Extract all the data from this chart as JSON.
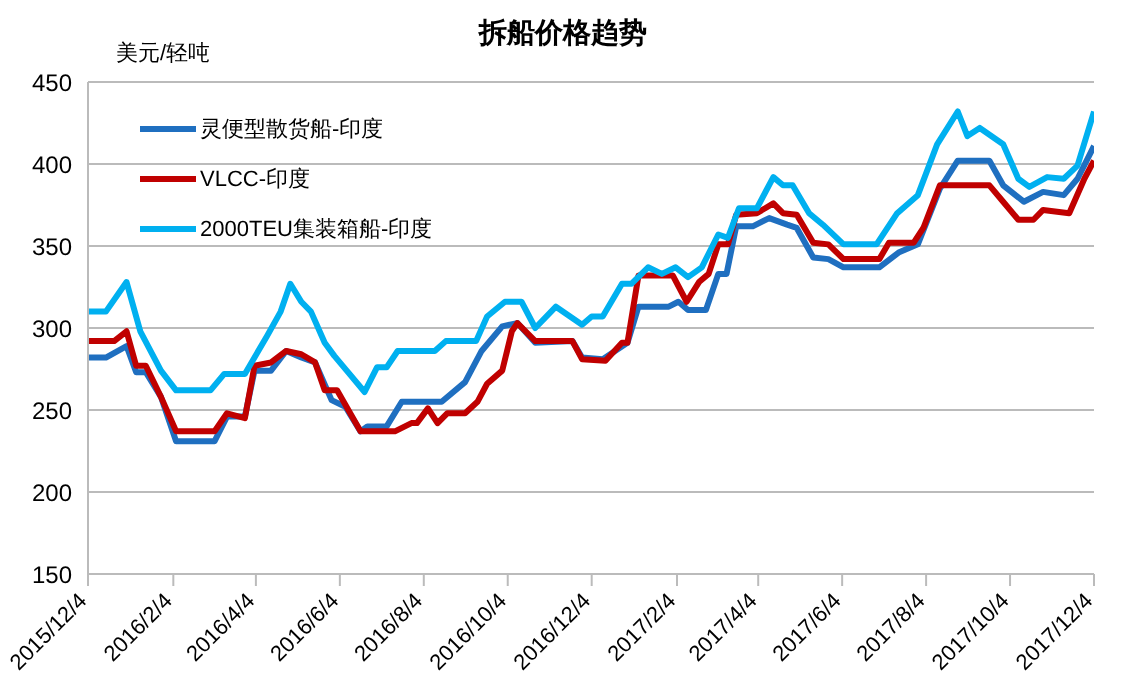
{
  "chart_data": {
    "type": "line",
    "title": "拆船价格趋势",
    "ylabel": "美元/轻吨",
    "ylim": [
      150,
      450
    ],
    "yticks": [
      150,
      200,
      250,
      300,
      350,
      400,
      450
    ],
    "xlim": [
      "2015-12-04",
      "2017-12-04"
    ],
    "xticks": [
      {
        "value": "2015-12-04",
        "label": "2015/12/4"
      },
      {
        "value": "2016-02-04",
        "label": "2016/2/4"
      },
      {
        "value": "2016-04-04",
        "label": "2016/4/4"
      },
      {
        "value": "2016-06-04",
        "label": "2016/6/4"
      },
      {
        "value": "2016-08-04",
        "label": "2016/8/4"
      },
      {
        "value": "2016-10-04",
        "label": "2016/10/4"
      },
      {
        "value": "2016-12-04",
        "label": "2016/12/4"
      },
      {
        "value": "2017-02-04",
        "label": "2017/2/4"
      },
      {
        "value": "2017-04-04",
        "label": "2017/4/4"
      },
      {
        "value": "2017-06-04",
        "label": "2017/6/4"
      },
      {
        "value": "2017-08-04",
        "label": "2017/8/4"
      },
      {
        "value": "2017-10-04",
        "label": "2017/10/4"
      },
      {
        "value": "2017-12-04",
        "label": "2017/12/4"
      }
    ],
    "grid": "y",
    "legend": "top left",
    "marker": "none",
    "line_style": "solid",
    "series": [
      {
        "name": "灵便型散货船-印度",
        "color": "#1f6fc0",
        "x": [
          "2015-12-04",
          "2015-12-17",
          "2016-01-01",
          "2016-01-08",
          "2016-01-15",
          "2016-01-26",
          "2016-02-06",
          "2016-03-05",
          "2016-03-14",
          "2016-03-27",
          "2016-04-03",
          "2016-04-15",
          "2016-04-26",
          "2016-05-07",
          "2016-05-17",
          "2016-05-29",
          "2016-06-08",
          "2016-06-19",
          "2016-06-24",
          "2016-07-08",
          "2016-07-19",
          "2016-08-17",
          "2016-09-03",
          "2016-09-15",
          "2016-09-30",
          "2016-10-11",
          "2016-10-24",
          "2016-11-20",
          "2016-11-27",
          "2016-12-12",
          "2016-12-30",
          "2017-01-07",
          "2017-01-29",
          "2017-02-05",
          "2017-02-12",
          "2017-02-25",
          "2017-03-06",
          "2017-03-12",
          "2017-03-19",
          "2017-03-31",
          "2017-04-12",
          "2017-04-25",
          "2017-05-02",
          "2017-05-14",
          "2017-05-25",
          "2017-06-05",
          "2017-07-01",
          "2017-07-15",
          "2017-07-29",
          "2017-08-14",
          "2017-08-27",
          "2017-09-19",
          "2017-09-29",
          "2017-10-14",
          "2017-10-28",
          "2017-11-12",
          "2017-11-22",
          "2017-12-04"
        ],
        "values": [
          282,
          282,
          289,
          273,
          273,
          258,
          231,
          231,
          246,
          246,
          274,
          274,
          286,
          282,
          279,
          256,
          252,
          237,
          240,
          240,
          255,
          255,
          267,
          286,
          301,
          303,
          291,
          292,
          282,
          281,
          291,
          313,
          313,
          316,
          311,
          311,
          333,
          333,
          362,
          362,
          367,
          363,
          361,
          343,
          342,
          337,
          337,
          346,
          351,
          385,
          402,
          402,
          387,
          377,
          383,
          381,
          391,
          411
        ]
      },
      {
        "name": "VLCC-印度",
        "color": "#c00000",
        "x": [
          "2015-12-04",
          "2015-12-23",
          "2016-01-01",
          "2016-01-08",
          "2016-01-15",
          "2016-01-26",
          "2016-02-06",
          "2016-03-05",
          "2016-03-14",
          "2016-03-27",
          "2016-04-03",
          "2016-04-15",
          "2016-04-26",
          "2016-05-07",
          "2016-05-17",
          "2016-05-24",
          "2016-06-02",
          "2016-06-19",
          "2016-07-14",
          "2016-07-26",
          "2016-07-30",
          "2016-08-07",
          "2016-08-14",
          "2016-08-21",
          "2016-09-03",
          "2016-09-12",
          "2016-09-19",
          "2016-09-30",
          "2016-10-07",
          "2016-10-11",
          "2016-10-24",
          "2016-11-20",
          "2016-11-27",
          "2016-12-14",
          "2016-12-26",
          "2016-12-30",
          "2017-01-07",
          "2017-02-01",
          "2017-02-11",
          "2017-02-20",
          "2017-02-27",
          "2017-03-06",
          "2017-03-13",
          "2017-03-19",
          "2017-04-03",
          "2017-04-15",
          "2017-04-22",
          "2017-05-02",
          "2017-05-14",
          "2017-05-25",
          "2017-06-05",
          "2017-07-01",
          "2017-07-08",
          "2017-07-26",
          "2017-08-02",
          "2017-08-14",
          "2017-08-21",
          "2017-09-19",
          "2017-09-29",
          "2017-10-10",
          "2017-10-21",
          "2017-10-28",
          "2017-11-16",
          "2017-11-27",
          "2017-12-04"
        ],
        "values": [
          292,
          292,
          298,
          277,
          277,
          258,
          237,
          237,
          248,
          245,
          277,
          279,
          286,
          284,
          279,
          262,
          262,
          237,
          237,
          242,
          242,
          251,
          242,
          248,
          248,
          255,
          266,
          274,
          298,
          303,
          292,
          292,
          281,
          280,
          291,
          291,
          332,
          332,
          316,
          328,
          333,
          351,
          351,
          369,
          370,
          376,
          370,
          369,
          352,
          351,
          342,
          342,
          352,
          352,
          361,
          387,
          387,
          387,
          377,
          366,
          366,
          372,
          370,
          391,
          402
        ]
      },
      {
        "name": "2000TEU集装箱船-印度",
        "color": "#00b0f0",
        "x": [
          "2015-12-04",
          "2015-12-17",
          "2016-01-01",
          "2016-01-11",
          "2016-01-26",
          "2016-02-06",
          "2016-03-02",
          "2016-03-12",
          "2016-03-27",
          "2016-04-12",
          "2016-04-22",
          "2016-04-29",
          "2016-05-07",
          "2016-05-14",
          "2016-05-24",
          "2016-05-31",
          "2016-06-09",
          "2016-06-22",
          "2016-07-01",
          "2016-07-08",
          "2016-07-16",
          "2016-08-12",
          "2016-08-20",
          "2016-09-11",
          "2016-09-19",
          "2016-10-02",
          "2016-10-14",
          "2016-10-24",
          "2016-11-08",
          "2016-11-27",
          "2016-12-04",
          "2016-12-12",
          "2016-12-26",
          "2017-01-02",
          "2017-01-14",
          "2017-01-24",
          "2017-02-03",
          "2017-02-12",
          "2017-02-22",
          "2017-03-06",
          "2017-03-13",
          "2017-03-21",
          "2017-04-03",
          "2017-04-15",
          "2017-04-22",
          "2017-04-29",
          "2017-05-11",
          "2017-05-21",
          "2017-06-05",
          "2017-06-29",
          "2017-07-14",
          "2017-07-29",
          "2017-08-12",
          "2017-08-27",
          "2017-09-03",
          "2017-09-12",
          "2017-09-29",
          "2017-10-10",
          "2017-10-18",
          "2017-10-31",
          "2017-11-12",
          "2017-11-22",
          "2017-12-04"
        ],
        "values": [
          310,
          310,
          328,
          298,
          274,
          262,
          262,
          272,
          272,
          295,
          310,
          327,
          316,
          310,
          291,
          283,
          274,
          261,
          276,
          276,
          286,
          286,
          292,
          292,
          307,
          316,
          316,
          300,
          313,
          302,
          307,
          307,
          327,
          327,
          337,
          333,
          337,
          331,
          337,
          357,
          355,
          373,
          373,
          392,
          387,
          387,
          370,
          363,
          351,
          351,
          370,
          381,
          412,
          432,
          417,
          422,
          412,
          391,
          386,
          392,
          391,
          399,
          432
        ]
      }
    ]
  }
}
